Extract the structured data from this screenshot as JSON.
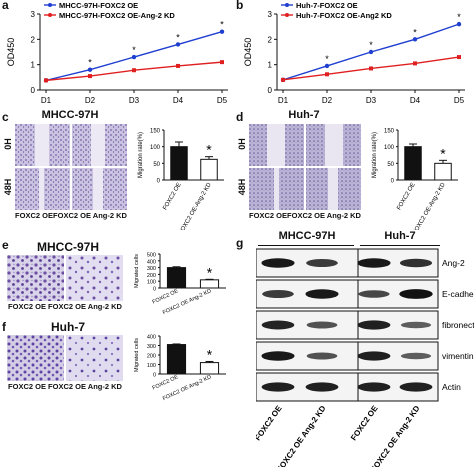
{
  "panels": {
    "a": {
      "label": "a",
      "chart_data": {
        "type": "line",
        "categories": [
          "D1",
          "D2",
          "D3",
          "D4",
          "D5"
        ],
        "series": [
          {
            "name": "MHCC-97H-FOXC2 OE",
            "color": "#1f3fd0",
            "values": [
              0.38,
              0.8,
              1.3,
              1.8,
              2.3
            ]
          },
          {
            "name": "MHCC-97H-FOXC2 OE-Ang-2 KD",
            "color": "#e02020",
            "values": [
              0.38,
              0.55,
              0.78,
              0.95,
              1.1
            ]
          }
        ],
        "ylabel": "OD450",
        "ylim": [
          0,
          3
        ],
        "yticks": [
          "0",
          "1",
          "2",
          "3"
        ],
        "sig_marks": [
          "*",
          "*",
          "*",
          "*"
        ]
      }
    },
    "b": {
      "label": "b",
      "chart_data": {
        "type": "line",
        "categories": [
          "D1",
          "D2",
          "D3",
          "D4",
          "D5"
        ],
        "series": [
          {
            "name": "Huh-7-FOXC2 OE",
            "color": "#1f3fd0",
            "values": [
              0.4,
              0.95,
              1.5,
              2.0,
              2.6
            ]
          },
          {
            "name": "Huh-7-FOXC2 OE-Ang2 KD",
            "color": "#e02020",
            "values": [
              0.4,
              0.62,
              0.85,
              1.05,
              1.3
            ]
          }
        ],
        "ylabel": "OD450",
        "ylim": [
          0,
          3
        ],
        "yticks": [
          "0",
          "1",
          "2",
          "3"
        ],
        "sig_marks": [
          "*",
          "*",
          "*",
          "*"
        ]
      }
    },
    "c": {
      "label": "c",
      "title": "MHCC-97H",
      "row_labels": [
        "0H",
        "48H"
      ],
      "col_labels": [
        "FOXC2 OE",
        "FOXC2 OE Ang-2 KD"
      ],
      "chart_data": {
        "type": "bar",
        "categories": [
          "FOXC2 OE",
          "FOXC2 OE-Ang-2 KD"
        ],
        "values": [
          100,
          62
        ],
        "errors": [
          14,
          8
        ],
        "ylabel": "Migration rate(%)",
        "ylim": [
          0,
          150
        ],
        "yticks": [
          "0",
          "50",
          "100",
          "150"
        ],
        "sig": "*"
      }
    },
    "d": {
      "label": "d",
      "title": "Huh-7",
      "row_labels": [
        "0H",
        "48H"
      ],
      "col_labels": [
        "FOXC2 OE",
        "FOXC2 OE Ang-2 KD"
      ],
      "chart_data": {
        "type": "bar",
        "categories": [
          "FOXC2 OE",
          "FOXC2 OE-Ang-2 KD"
        ],
        "values": [
          100,
          50
        ],
        "errors": [
          8,
          9
        ],
        "ylabel": "Migration rate(%)",
        "ylim": [
          0,
          150
        ],
        "yticks": [
          "0",
          "50",
          "100",
          "150"
        ],
        "sig": "*"
      }
    },
    "e": {
      "label": "e",
      "title": "MHCC-97H",
      "col_labels": [
        "FOXC2 OE",
        "FOXC2 OE Ang-2 KD"
      ],
      "chart_data": {
        "type": "bar",
        "categories": [
          "FOXC2 OE",
          "FOXC2 OE Ang-2 KD"
        ],
        "values": [
          300,
          120
        ],
        "errors": [
          12,
          8
        ],
        "ylabel": "Migrated cells",
        "ylim": [
          0,
          500
        ],
        "yticks": [
          "0",
          "100",
          "200",
          "300",
          "400",
          "500"
        ],
        "sig": "*"
      }
    },
    "f": {
      "label": "f",
      "title": "Huh-7",
      "col_labels": [
        "FOXC2 OE",
        "FOXC2 OE Ang-2 KD"
      ],
      "chart_data": {
        "type": "bar",
        "categories": [
          "FOXC2 OE",
          "FOXC2 OE Ang-2 KD"
        ],
        "values": [
          310,
          120
        ],
        "errors": [
          6,
          12
        ],
        "ylabel": "Migrated cells",
        "ylim": [
          0,
          400
        ],
        "yticks": [
          "0",
          "100",
          "200",
          "300",
          "400"
        ],
        "sig": "*"
      }
    },
    "g": {
      "label": "g",
      "groups": [
        "MHCC-97H",
        "Huh-7"
      ],
      "proteins": [
        "Ang-2",
        "E-cadherin",
        "fibronectin",
        "vimentin",
        "Actin"
      ],
      "lanes": [
        "FOXC2 OE",
        "FOXC2 OE Ang-2 KD"
      ]
    }
  },
  "colors": {
    "blue": "#1f3fd0",
    "red": "#e02020",
    "stain": "#7a5fa8"
  }
}
